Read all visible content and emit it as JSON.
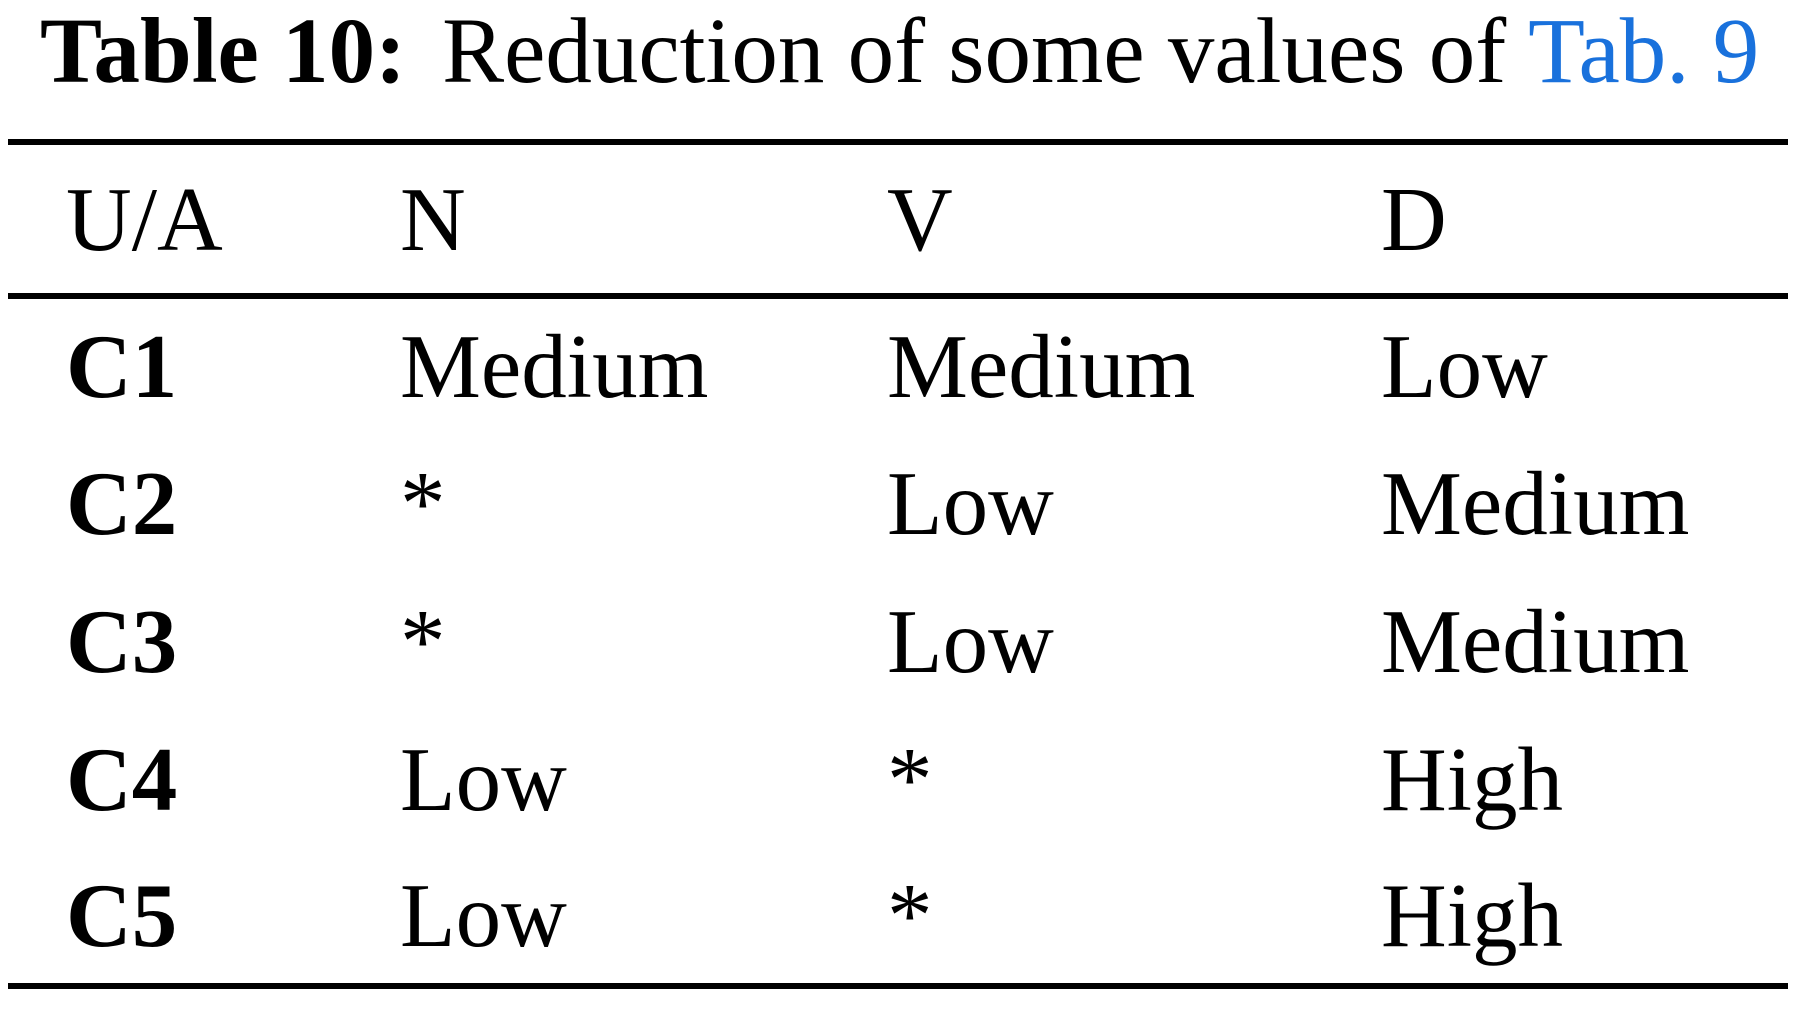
{
  "caption": {
    "label": "Table 10:",
    "text": "Reduction of some values of",
    "link_text": "Tab. 9"
  },
  "table": {
    "headers": [
      "U/A",
      "N",
      "V",
      "D"
    ],
    "rows": [
      {
        "label": "C1",
        "values": [
          "Medium",
          "Medium",
          "Low"
        ]
      },
      {
        "label": "C2",
        "values": [
          "*",
          "Low",
          "Medium"
        ]
      },
      {
        "label": "C3",
        "values": [
          "*",
          "Low",
          "Medium"
        ]
      },
      {
        "label": "C4",
        "values": [
          "Low",
          "*",
          "High"
        ]
      },
      {
        "label": "C5",
        "values": [
          "Low",
          "*",
          "High"
        ]
      }
    ]
  },
  "colors": {
    "link": "#1971dc",
    "text": "#000000",
    "rule": "#000000",
    "background": "#ffffff"
  }
}
